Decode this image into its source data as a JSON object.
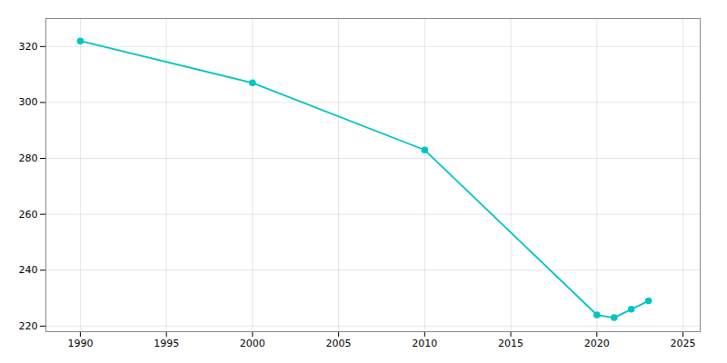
{
  "chart_data": {
    "type": "line",
    "x": [
      1990,
      2000,
      2010,
      2020,
      2021,
      2022,
      2023
    ],
    "values": [
      322,
      307,
      283,
      224,
      223,
      226,
      229
    ],
    "color": "#00C5C5",
    "marker": "circle",
    "grid": true,
    "xlim": [
      1988,
      2026
    ],
    "ylim": [
      218,
      330
    ],
    "xticks": [
      1990,
      1995,
      2000,
      2005,
      2010,
      2015,
      2020,
      2025
    ],
    "yticks": [
      220,
      240,
      260,
      280,
      300,
      320
    ]
  }
}
